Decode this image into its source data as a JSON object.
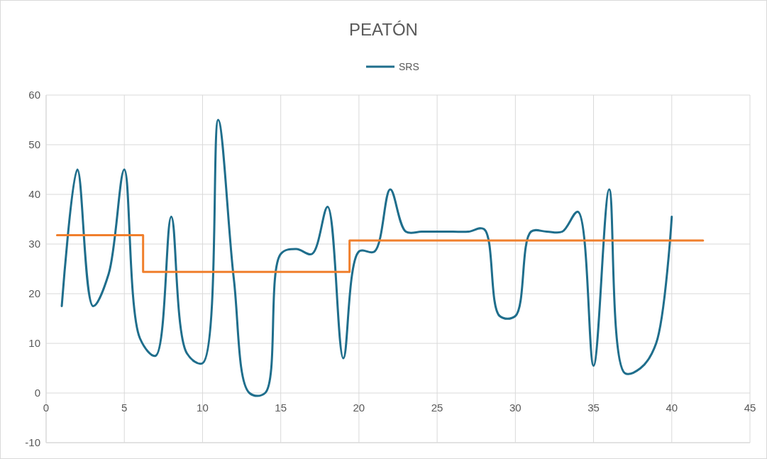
{
  "chart_data": {
    "type": "line",
    "title": "PEATÓN",
    "xlim": [
      0,
      45
    ],
    "xticks": [
      0,
      5,
      10,
      15,
      20,
      25,
      30,
      35,
      40,
      45
    ],
    "ylim": [
      -10,
      60
    ],
    "yticks": [
      -10,
      0,
      10,
      20,
      30,
      40,
      50,
      60
    ],
    "grid": true,
    "legend": "top",
    "series": [
      {
        "name": "SRS",
        "color": "#1f6e8c",
        "x": [
          1,
          2,
          3,
          4,
          5,
          6,
          7,
          8,
          9,
          10,
          11,
          12,
          13,
          14,
          15,
          16,
          17,
          18,
          19,
          20,
          21,
          22,
          23,
          24,
          25,
          26,
          27,
          28,
          29,
          30,
          31,
          32,
          33,
          34,
          35,
          36,
          37,
          38,
          39,
          40
        ],
        "values": [
          17.5,
          45,
          17.5,
          24,
          45,
          11,
          7.5,
          35.5,
          8,
          6,
          55,
          23,
          0,
          0,
          28,
          29,
          28,
          37.5,
          7,
          28.5,
          28.5,
          41,
          32.5,
          32.5,
          32.5,
          32.5,
          32.5,
          33,
          15.5,
          15.5,
          32.5,
          32.5,
          32.5,
          36.5,
          5.5,
          41,
          4,
          5,
          10,
          35.5
        ]
      },
      {
        "type": "step",
        "color": "#f07f2c",
        "x": [
          0.7,
          6.2,
          19.4,
          42
        ],
        "values": [
          31.8,
          24.4,
          30.7,
          30.7
        ]
      }
    ]
  }
}
